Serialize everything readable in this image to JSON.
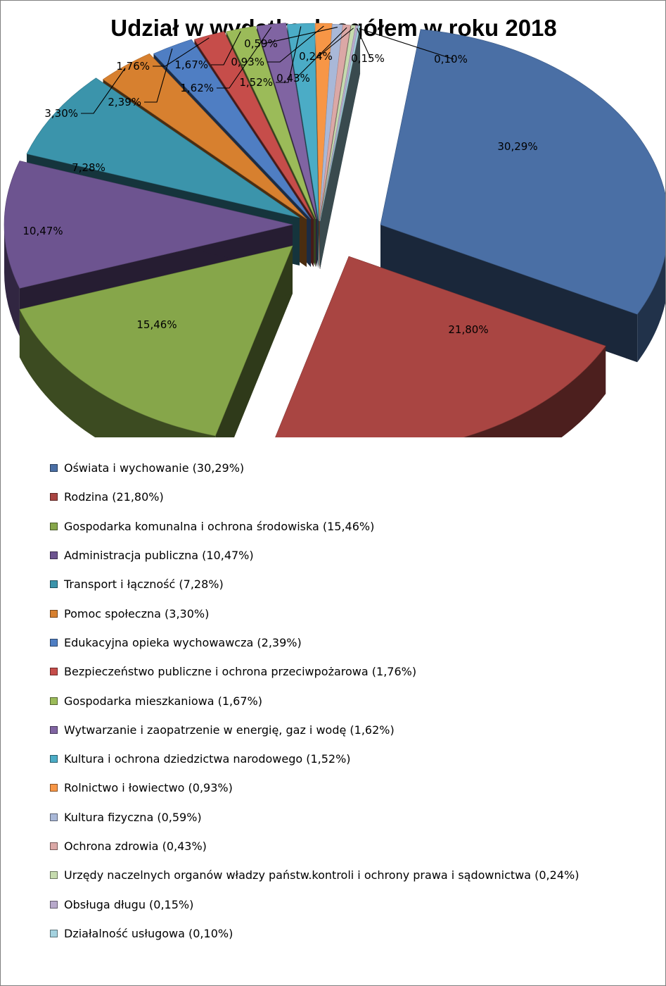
{
  "chart_data": {
    "type": "pie",
    "title": "Udział w wydatkach ogółem w roku 2018",
    "slices": [
      {
        "label": "Oświata i wychowanie",
        "value": 30.29,
        "value_label": "30,29%",
        "color": "#4a6fa5"
      },
      {
        "label": "Rodzina",
        "value": 21.8,
        "value_label": "21,80%",
        "color": "#a94542"
      },
      {
        "label": "Gospodarka komunalna i ochrona środowiska",
        "value": 15.46,
        "value_label": "15,46%",
        "color": "#86a64a"
      },
      {
        "label": "Administracja publiczna",
        "value": 10.47,
        "value_label": "10,47%",
        "color": "#6d5490"
      },
      {
        "label": "Transport i łączność",
        "value": 7.28,
        "value_label": "7,28%",
        "color": "#3b94ab"
      },
      {
        "label": "Pomoc społeczna",
        "value": 3.3,
        "value_label": "3,30%",
        "color": "#d7802f"
      },
      {
        "label": "Edukacyjna opieka wychowawcza",
        "value": 2.39,
        "value_label": "2,39%",
        "color": "#4f7ec3"
      },
      {
        "label": "Bezpieczeństwo publiczne i ochrona przeciwpożarowa",
        "value": 1.76,
        "value_label": "1,76%",
        "color": "#c64d4a"
      },
      {
        "label": "Gospodarka mieszkaniowa",
        "value": 1.67,
        "value_label": "1,67%",
        "color": "#9bbb59"
      },
      {
        "label": "Wytwarzanie i zaopatrzenie w energię, gaz i wodę",
        "value": 1.62,
        "value_label": "1,62%",
        "color": "#8064a2"
      },
      {
        "label": "Kultura i ochrona dziedzictwa narodowego",
        "value": 1.52,
        "value_label": "1,52%",
        "color": "#4bacc6"
      },
      {
        "label": "Rolnictwo i łowiectwo",
        "value": 0.93,
        "value_label": "0,93%",
        "color": "#f79646"
      },
      {
        "label": "Kultura fizyczna",
        "value": 0.59,
        "value_label": "0,59%",
        "color": "#a9b8d8"
      },
      {
        "label": "Ochrona zdrowia",
        "value": 0.43,
        "value_label": "0,43%",
        "color": "#dba8a6"
      },
      {
        "label": "Urzędy naczelnych organów władzy państw.kontroli i ochrony prawa i  sądownictwa",
        "value": 0.24,
        "value_label": "0,24%",
        "color": "#c6dbae"
      },
      {
        "label": "Obsługa długu",
        "value": 0.15,
        "value_label": "0,15%",
        "color": "#b8a9cb"
      },
      {
        "label": "Działalność usługowa",
        "value": 0.1,
        "value_label": "0,10%",
        "color": "#a4d2df"
      }
    ],
    "legend": [
      "Oświata i wychowanie (30,29%)",
      "Rodzina (21,80%)",
      "Gospodarka komunalna i ochrona środowiska (15,46%)",
      "Administracja publiczna (10,47%)",
      "Transport i łączność (7,28%)",
      "Pomoc społeczna (3,30%)",
      "Edukacyjna opieka wychowawcza (2,39%)",
      "Bezpieczeństwo publiczne i ochrona przeciwpożarowa (1,76%)",
      "Gospodarka mieszkaniowa (1,67%)",
      "Wytwarzanie i zaopatrzenie w energię, gaz i wodę (1,62%)",
      "Kultura i ochrona dziedzictwa narodowego (1,52%)",
      "Rolnictwo i łowiectwo (0,93%)",
      "Kultura fizyczna (0,59%)",
      "Ochrona zdrowia (0,43%)",
      "Urzędy naczelnych organów władzy państw.kontroli i ochrony prawa i  sądownictwa (0,24%)",
      "Obsługa długu (0,15%)",
      "Działalność usługowa (0,10%)"
    ],
    "style": "3d exploded pie",
    "legend_position": "bottom"
  }
}
